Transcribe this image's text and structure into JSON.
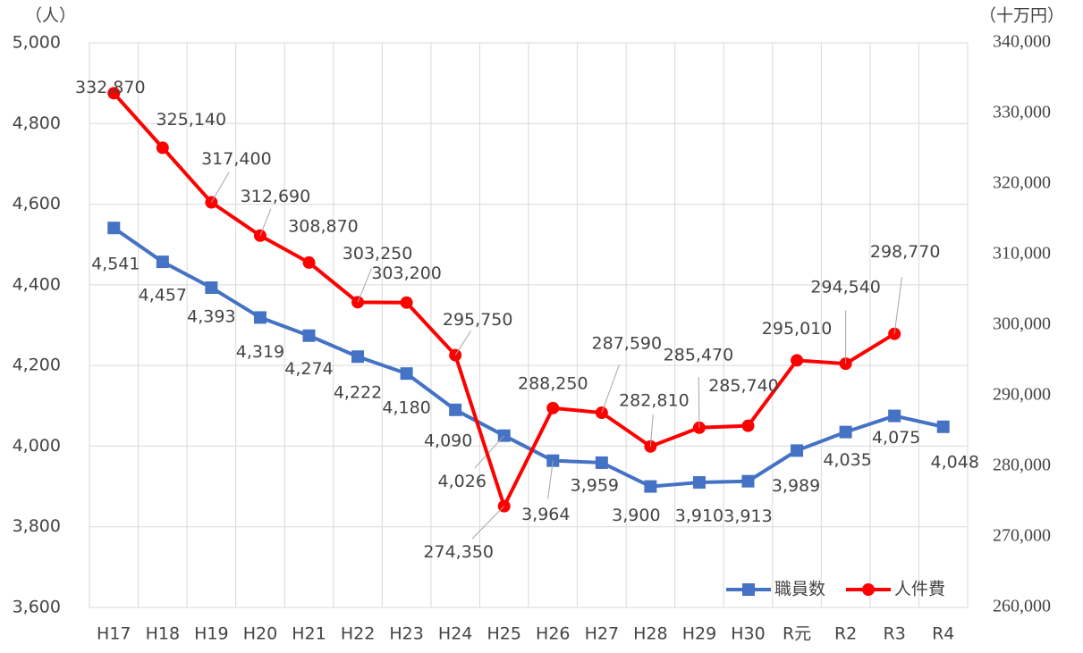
{
  "chart_data": {
    "type": "line",
    "y_label": "（人）",
    "y2_label": "（十万円）",
    "categories": [
      "H17",
      "H18",
      "H19",
      "H20",
      "H21",
      "H22",
      "H23",
      "H24",
      "H25",
      "H26",
      "H27",
      "H28",
      "H29",
      "H30",
      "R元",
      "R2",
      "R3",
      "R4"
    ],
    "series": [
      {
        "name": "職員数",
        "color": "#4472c4",
        "marker": "square",
        "values": [
          4541,
          4457,
          4393,
          4319,
          4274,
          4222,
          4180,
          4090,
          4026,
          3964,
          3959,
          3900,
          3910,
          3913,
          3989,
          4035,
          4075,
          4048
        ],
        "value_labels": [
          "4,541",
          "4,457",
          "4,393",
          "4,319",
          "4,274",
          "4,222",
          "4,180",
          "4,090",
          "4,026",
          "3,964",
          "3,959",
          "3,900",
          "3,910",
          "3,913",
          "3,989",
          "4,035",
          "4,075",
          "4,048"
        ]
      },
      {
        "name": "人件費",
        "color": "#ff0000",
        "marker": "circle",
        "axis": "y2",
        "values": [
          332870,
          325140,
          317400,
          312690,
          308870,
          303250,
          303200,
          295750,
          274350,
          288250,
          287590,
          282810,
          285470,
          285740,
          295010,
          294540,
          298770,
          null
        ],
        "value_labels": [
          "332,870",
          "325,140",
          "317,400",
          "312,690",
          "308,870",
          "303,250",
          "303,200",
          "295,750",
          "274,350",
          "288,250",
          "287,590",
          "282,810",
          "285,470",
          "285,740",
          "295,010",
          "294,540",
          "298,770",
          null
        ]
      }
    ],
    "ylim": [
      3600,
      5000
    ],
    "yticks": [
      {
        "value": 3600,
        "label": "3,600"
      },
      {
        "value": 3800,
        "label": "3,800"
      },
      {
        "value": 4000,
        "label": "4,000"
      },
      {
        "value": 4200,
        "label": "4,200"
      },
      {
        "value": 4400,
        "label": "4,400"
      },
      {
        "value": 4600,
        "label": "4,600"
      },
      {
        "value": 4800,
        "label": "4,800"
      },
      {
        "value": 5000,
        "label": "5,000"
      }
    ],
    "y2lim": [
      260000,
      340000
    ],
    "y2ticks": [
      {
        "value": 260000,
        "label": "260,000"
      },
      {
        "value": 270000,
        "label": "270,000"
      },
      {
        "value": 280000,
        "label": "280,000"
      },
      {
        "value": 290000,
        "label": "290,000"
      },
      {
        "value": 300000,
        "label": "300,000"
      },
      {
        "value": 310000,
        "label": "310,000"
      },
      {
        "value": 320000,
        "label": "320,000"
      },
      {
        "value": 330000,
        "label": "330,000"
      },
      {
        "value": 340000,
        "label": "340,000"
      }
    ],
    "grid": true,
    "legend": "lower right"
  }
}
